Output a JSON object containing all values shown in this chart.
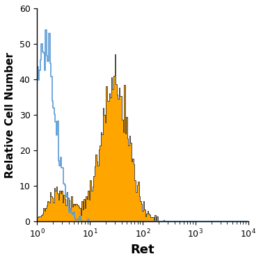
{
  "title": "",
  "xlabel": "Ret",
  "ylabel": "Relative Cell Number",
  "xlim_log": [
    0,
    4
  ],
  "ylim": [
    0,
    60
  ],
  "yticks": [
    0,
    10,
    20,
    30,
    40,
    50,
    60
  ],
  "xlabel_fontsize": 13,
  "ylabel_fontsize": 11,
  "orange_color": "#FFA500",
  "blue_color": "#5B9BD5",
  "dark_color": "#333333",
  "bg_color": "#FFFFFF"
}
